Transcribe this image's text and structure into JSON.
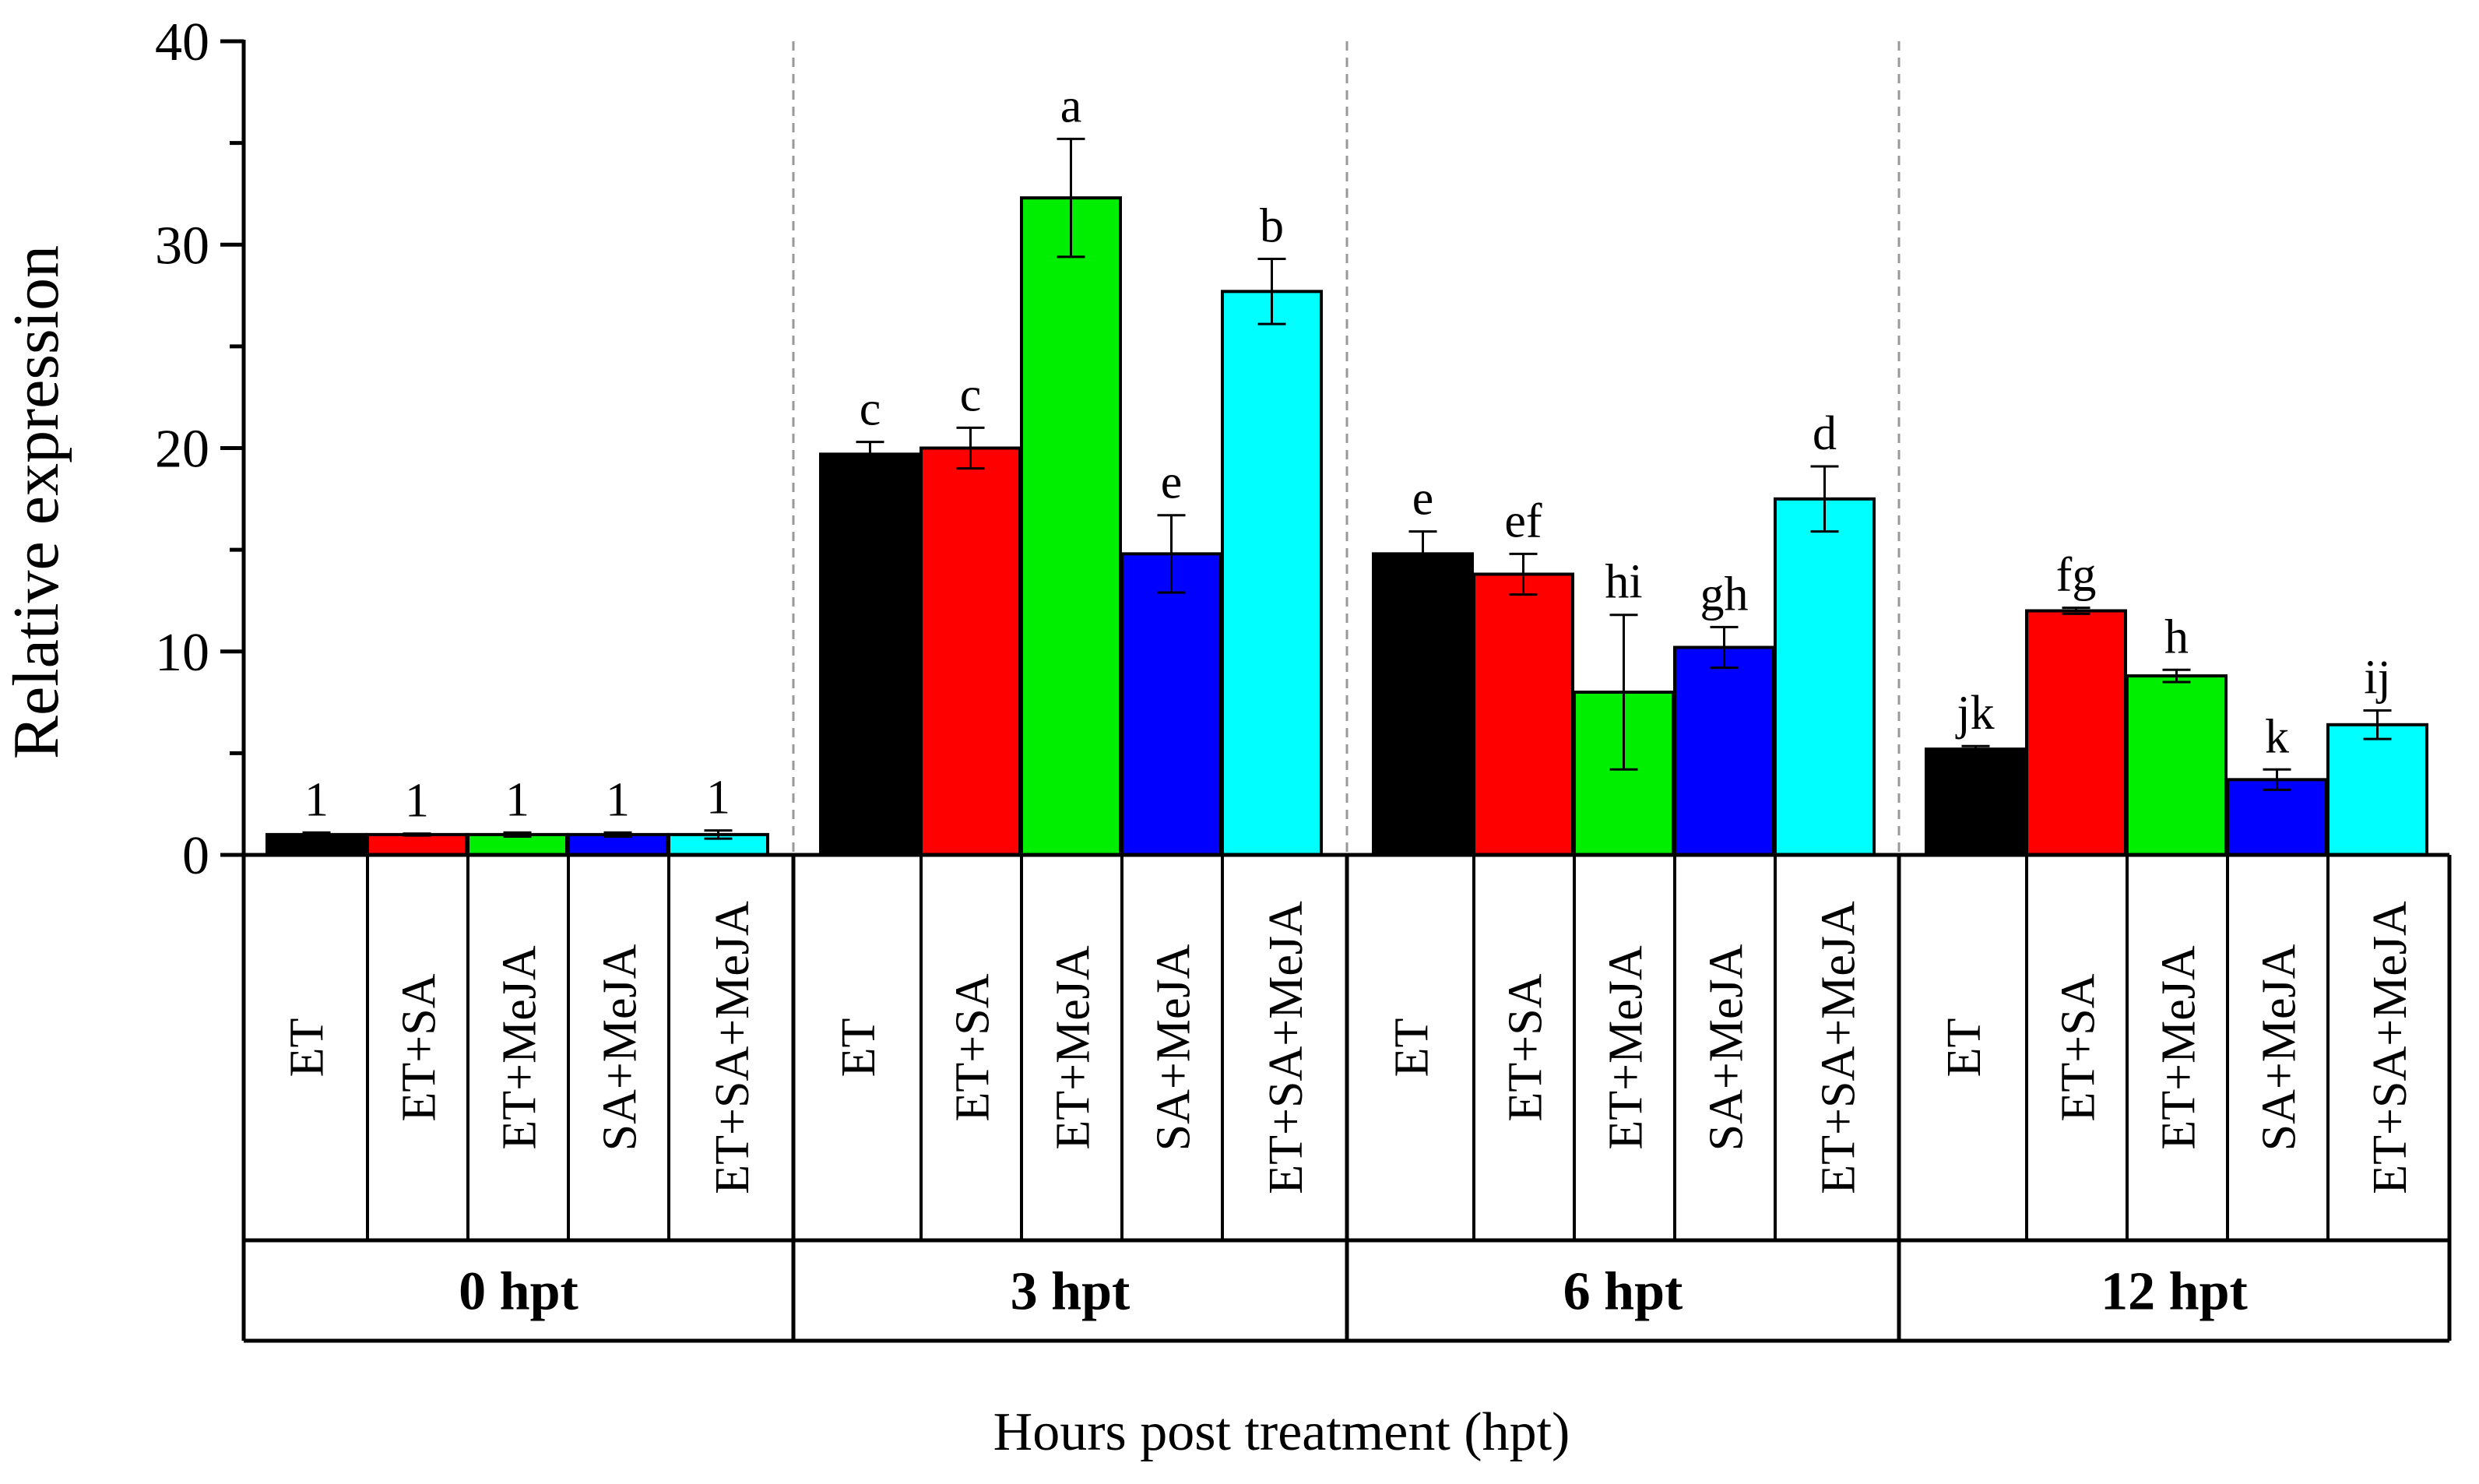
{
  "chart_data": {
    "type": "bar",
    "title": "",
    "xlabel": "Hours post treatment (hpt)",
    "ylabel": "Relative expression",
    "ylim": [
      0,
      40
    ],
    "y_ticks": [
      0,
      10,
      20,
      30,
      40
    ],
    "y_tick_labels": [
      "0",
      "10",
      "20",
      "30",
      "40"
    ],
    "grid": false,
    "groups": [
      {
        "label": "0 hpt",
        "treatments": [
          "ET",
          "ET+SA",
          "ET+MeJA",
          "SA+MeJA",
          "ET+SA+MeJA"
        ],
        "values": [
          1.0,
          1.0,
          1.0,
          1.0,
          1.0
        ],
        "errors": [
          0.1,
          0.05,
          0.1,
          0.1,
          0.2
        ],
        "letters": [
          "1",
          "1",
          "1",
          "1",
          "1"
        ]
      },
      {
        "label": "3 hpt",
        "treatments": [
          "ET",
          "ET+SA",
          "ET+MeJA",
          "SA+MeJA",
          "ET+SA+MeJA"
        ],
        "values": [
          19.7,
          20.0,
          32.3,
          14.8,
          27.7
        ],
        "errors": [
          0.6,
          1.0,
          2.9,
          1.9,
          1.6
        ],
        "letters": [
          "c",
          "c",
          "a",
          "e",
          "b"
        ]
      },
      {
        "label": "6 hpt",
        "treatments": [
          "ET",
          "ET+SA",
          "ET+MeJA",
          "SA+MeJA",
          "ET+SA+MeJA"
        ],
        "values": [
          14.8,
          13.8,
          8.0,
          10.2,
          17.5
        ],
        "errors": [
          1.1,
          1.0,
          3.8,
          1.0,
          1.6
        ],
        "letters": [
          "e",
          "ef",
          "hi",
          "gh",
          "d"
        ]
      },
      {
        "label": "12 hpt",
        "treatments": [
          "ET",
          "ET+SA",
          "ET+MeJA",
          "SA+MeJA",
          "ET+SA+MeJA"
        ],
        "values": [
          5.2,
          12.0,
          8.8,
          3.7,
          6.4
        ],
        "errors": [
          0.15,
          0.15,
          0.3,
          0.5,
          0.7
        ],
        "letters": [
          "jk",
          "fg",
          "h",
          "k",
          "ij"
        ]
      }
    ],
    "colors": {
      "ET": "#000000",
      "ET+SA": "#ff0000",
      "ET+MeJA": "#00ee00",
      "SA+MeJA": "#0000ff",
      "ET+SA+MeJA": "#00ffff"
    }
  }
}
